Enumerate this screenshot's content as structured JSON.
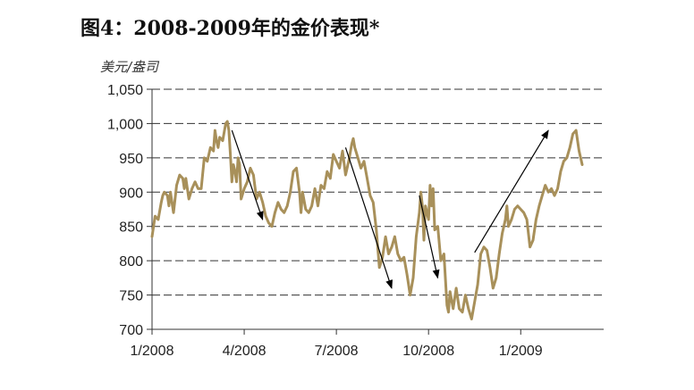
{
  "chart_data": {
    "type": "line",
    "title": "图4：2008-2009年的金价表现*",
    "ylabel": "美元/盎司",
    "xlabel": "",
    "ylim": [
      700,
      1050
    ],
    "yticks": [
      "1,050",
      "1,000",
      "950",
      "900",
      "850",
      "800",
      "750",
      "700"
    ],
    "ytick_values": [
      1050,
      1000,
      950,
      900,
      850,
      800,
      750,
      700
    ],
    "xticks": [
      "1/2008",
      "4/2008",
      "7/2008",
      "10/2008",
      "1/2009"
    ],
    "xtick_months": [
      0,
      3,
      6,
      9,
      12
    ],
    "xlim_months": [
      0,
      14.7
    ],
    "grid": "horizontal-dashed",
    "series": [
      {
        "color": "#a8905a",
        "points": [
          [
            0.0,
            835
          ],
          [
            0.1,
            865
          ],
          [
            0.2,
            860
          ],
          [
            0.3,
            885
          ],
          [
            0.35,
            895
          ],
          [
            0.4,
            900
          ],
          [
            0.5,
            895
          ],
          [
            0.55,
            880
          ],
          [
            0.6,
            900
          ],
          [
            0.7,
            870
          ],
          [
            0.8,
            910
          ],
          [
            0.9,
            925
          ],
          [
            1.0,
            920
          ],
          [
            1.05,
            905
          ],
          [
            1.1,
            920
          ],
          [
            1.2,
            890
          ],
          [
            1.3,
            905
          ],
          [
            1.4,
            915
          ],
          [
            1.5,
            905
          ],
          [
            1.6,
            905
          ],
          [
            1.7,
            950
          ],
          [
            1.8,
            945
          ],
          [
            1.9,
            965
          ],
          [
            2.0,
            960
          ],
          [
            2.05,
            990
          ],
          [
            2.1,
            975
          ],
          [
            2.15,
            965
          ],
          [
            2.2,
            980
          ],
          [
            2.3,
            975
          ],
          [
            2.4,
            1000
          ],
          [
            2.45,
            1003
          ],
          [
            2.5,
            990
          ],
          [
            2.55,
            955
          ],
          [
            2.6,
            915
          ],
          [
            2.65,
            940
          ],
          [
            2.7,
            930
          ],
          [
            2.75,
            915
          ],
          [
            2.8,
            950
          ],
          [
            2.85,
            940
          ],
          [
            2.9,
            890
          ],
          [
            3.0,
            905
          ],
          [
            3.1,
            915
          ],
          [
            3.2,
            935
          ],
          [
            3.3,
            925
          ],
          [
            3.4,
            890
          ],
          [
            3.5,
            900
          ],
          [
            3.6,
            885
          ],
          [
            3.7,
            865
          ],
          [
            3.8,
            855
          ],
          [
            3.9,
            850
          ],
          [
            4.0,
            870
          ],
          [
            4.1,
            885
          ],
          [
            4.2,
            875
          ],
          [
            4.3,
            870
          ],
          [
            4.4,
            880
          ],
          [
            4.5,
            900
          ],
          [
            4.6,
            930
          ],
          [
            4.7,
            935
          ],
          [
            4.8,
            900
          ],
          [
            4.85,
            870
          ],
          [
            4.9,
            900
          ],
          [
            5.0,
            875
          ],
          [
            5.1,
            870
          ],
          [
            5.2,
            880
          ],
          [
            5.3,
            905
          ],
          [
            5.4,
            880
          ],
          [
            5.5,
            910
          ],
          [
            5.6,
            905
          ],
          [
            5.7,
            930
          ],
          [
            5.8,
            920
          ],
          [
            5.9,
            955
          ],
          [
            6.0,
            945
          ],
          [
            6.1,
            935
          ],
          [
            6.2,
            960
          ],
          [
            6.3,
            925
          ],
          [
            6.4,
            945
          ],
          [
            6.5,
            970
          ],
          [
            6.55,
            978
          ],
          [
            6.6,
            965
          ],
          [
            6.7,
            950
          ],
          [
            6.8,
            935
          ],
          [
            6.9,
            945
          ],
          [
            7.0,
            920
          ],
          [
            7.1,
            895
          ],
          [
            7.2,
            885
          ],
          [
            7.3,
            845
          ],
          [
            7.4,
            790
          ],
          [
            7.5,
            805
          ],
          [
            7.6,
            835
          ],
          [
            7.7,
            810
          ],
          [
            7.8,
            820
          ],
          [
            7.9,
            835
          ],
          [
            8.0,
            810
          ],
          [
            8.1,
            800
          ],
          [
            8.2,
            805
          ],
          [
            8.3,
            780
          ],
          [
            8.4,
            750
          ],
          [
            8.5,
            775
          ],
          [
            8.6,
            835
          ],
          [
            8.7,
            870
          ],
          [
            8.75,
            900
          ],
          [
            8.8,
            880
          ],
          [
            8.85,
            830
          ],
          [
            8.9,
            880
          ],
          [
            9.0,
            860
          ],
          [
            9.05,
            910
          ],
          [
            9.1,
            880
          ],
          [
            9.15,
            905
          ],
          [
            9.2,
            845
          ],
          [
            9.3,
            850
          ],
          [
            9.4,
            800
          ],
          [
            9.5,
            810
          ],
          [
            9.6,
            735
          ],
          [
            9.65,
            725
          ],
          [
            9.7,
            755
          ],
          [
            9.8,
            730
          ],
          [
            9.9,
            760
          ],
          [
            9.95,
            745
          ],
          [
            10.0,
            730
          ],
          [
            10.1,
            725
          ],
          [
            10.2,
            750
          ],
          [
            10.3,
            730
          ],
          [
            10.4,
            715
          ],
          [
            10.5,
            740
          ],
          [
            10.6,
            765
          ],
          [
            10.7,
            810
          ],
          [
            10.8,
            820
          ],
          [
            10.9,
            815
          ],
          [
            11.0,
            790
          ],
          [
            11.1,
            760
          ],
          [
            11.2,
            775
          ],
          [
            11.3,
            810
          ],
          [
            11.4,
            840
          ],
          [
            11.5,
            860
          ],
          [
            11.55,
            880
          ],
          [
            11.6,
            850
          ],
          [
            11.7,
            860
          ],
          [
            11.8,
            875
          ],
          [
            11.9,
            880
          ],
          [
            12.0,
            875
          ],
          [
            12.1,
            870
          ],
          [
            12.2,
            860
          ],
          [
            12.3,
            820
          ],
          [
            12.4,
            830
          ],
          [
            12.5,
            860
          ],
          [
            12.6,
            880
          ],
          [
            12.7,
            895
          ],
          [
            12.8,
            910
          ],
          [
            12.9,
            900
          ],
          [
            13.0,
            905
          ],
          [
            13.1,
            895
          ],
          [
            13.2,
            905
          ],
          [
            13.3,
            930
          ],
          [
            13.4,
            945
          ],
          [
            13.5,
            950
          ],
          [
            13.6,
            965
          ],
          [
            13.7,
            985
          ],
          [
            13.8,
            990
          ],
          [
            13.9,
            960
          ],
          [
            14.0,
            940
          ]
        ]
      }
    ],
    "annotations": [
      {
        "type": "arrow",
        "from": [
          2.6,
          990
        ],
        "to": [
          3.6,
          860
        ]
      },
      {
        "type": "arrow",
        "from": [
          6.3,
          965
        ],
        "to": [
          7.8,
          760
        ]
      },
      {
        "type": "arrow",
        "from": [
          8.7,
          895
        ],
        "to": [
          9.3,
          775
        ]
      },
      {
        "type": "arrow",
        "from": [
          10.5,
          812
        ],
        "to": [
          12.9,
          990
        ]
      }
    ]
  }
}
